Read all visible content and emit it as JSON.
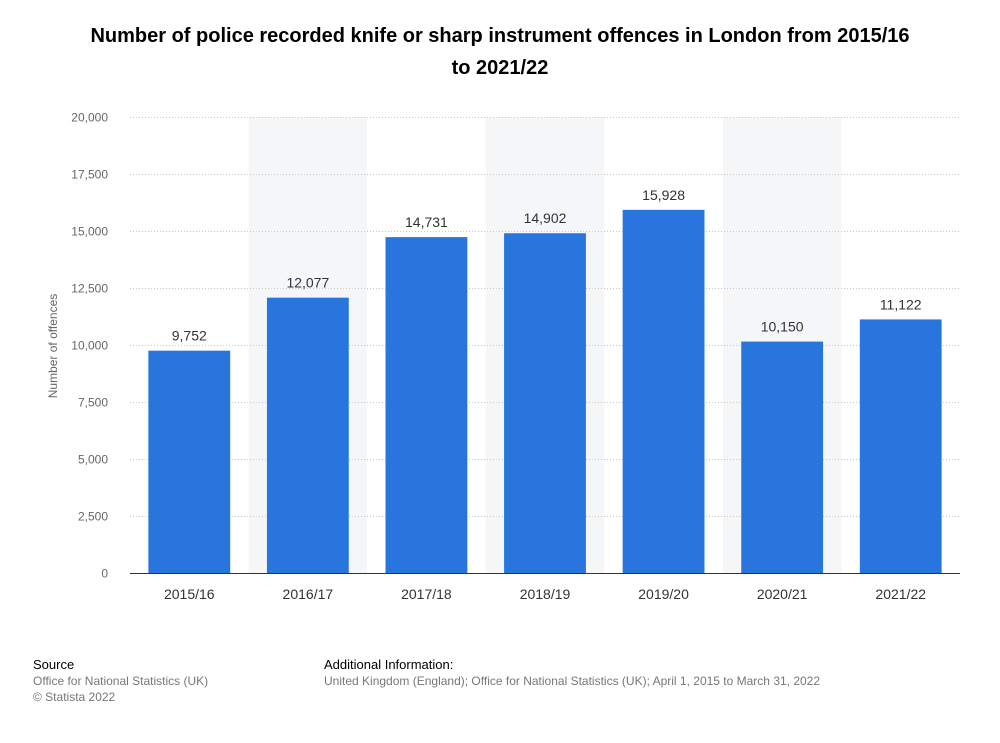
{
  "chart_data": {
    "type": "bar",
    "title": "Number of police recorded knife or sharp instrument offences in London from 2015/16 to 2021/22",
    "xlabel": "",
    "ylabel": "Number of offences",
    "categories": [
      "2015/16",
      "2016/17",
      "2017/18",
      "2018/19",
      "2019/20",
      "2020/21",
      "2021/22"
    ],
    "values": [
      9752,
      12077,
      14731,
      14902,
      15928,
      10150,
      11122
    ],
    "value_labels": [
      "9,752",
      "12,077",
      "14,731",
      "14,902",
      "15,928",
      "10,150",
      "11,122"
    ],
    "ylim": [
      0,
      20000
    ],
    "yticks": [
      0,
      2500,
      5000,
      7500,
      10000,
      12500,
      15000,
      17500,
      20000
    ],
    "ytick_labels": [
      "0",
      "2,500",
      "5,000",
      "7,500",
      "10,000",
      "12,500",
      "15,000",
      "17,500",
      "20,000"
    ],
    "grid": true,
    "bar_color": "#2875dd",
    "band_color": "#f5f6f8"
  },
  "footer": {
    "source_heading": "Source",
    "source_lines": [
      "Office for National Statistics (UK)",
      "© Statista 2022"
    ],
    "info_heading": "Additional Information:",
    "info_text": "United Kingdom (England); Office for National Statistics (UK); April 1, 2015 to March 31, 2022"
  }
}
